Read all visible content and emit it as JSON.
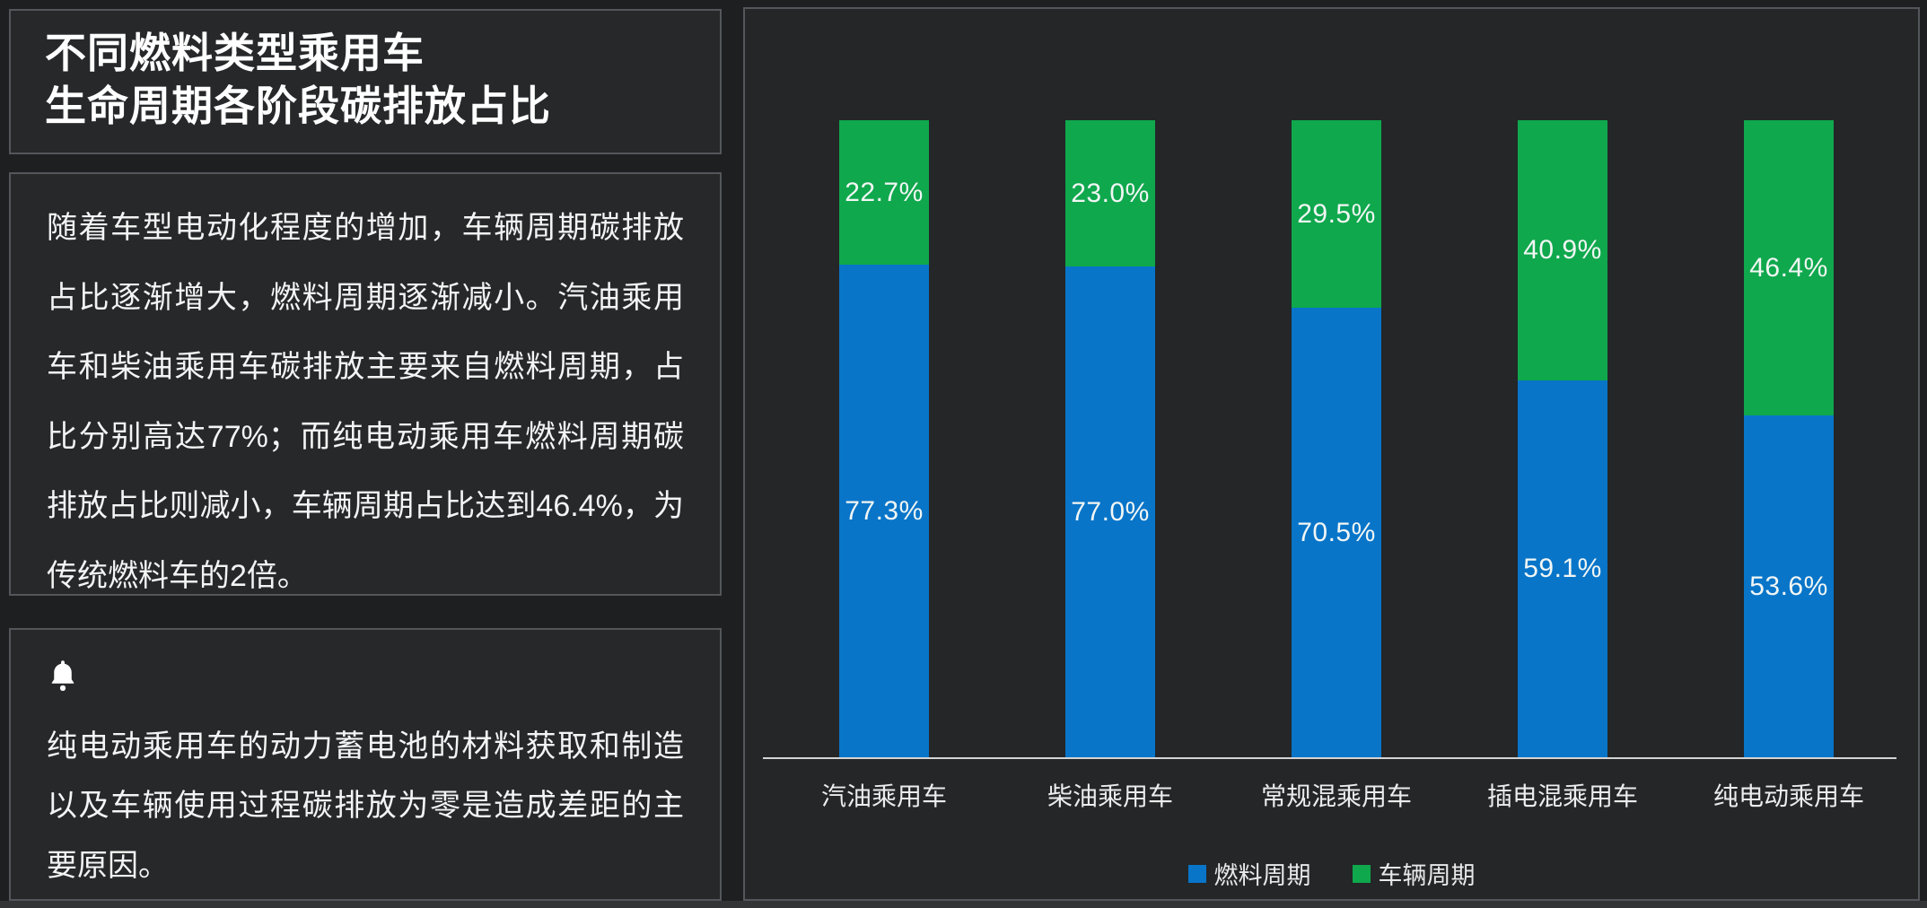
{
  "left_panel": {
    "title_line1": "不同燃料类型乘用车",
    "title_line2": "生命周期各阶段碳排放占比",
    "description": "随着车型电动化程度的增加，车辆周期碳排放占比逐渐增大，燃料周期逐渐减小。汽油乘用车和柴油乘用车碳排放主要来自燃料周期，占比分别高达77%；而纯电动乘用车燃料周期碳排放占比则减小，车辆周期占比达到46.4%，为传统燃料车的2倍。",
    "note": {
      "icon": "bell-icon",
      "text": "纯电动乘用车的动力蓄电池的材料获取和制造以及车辆使用过程碳排放为零是造成差距的主要原因。"
    }
  },
  "chart_data": {
    "type": "bar",
    "stacked": true,
    "orientation": "vertical",
    "categories": [
      "汽油乘用车",
      "柴油乘用车",
      "常规混乘用车",
      "插电混乘用车",
      "纯电动乘用车"
    ],
    "series": [
      {
        "name": "燃料周期",
        "color": "#0875C9",
        "values": [
          77.3,
          77.0,
          70.5,
          59.1,
          53.6
        ]
      },
      {
        "name": "车辆周期",
        "color": "#0FA84D",
        "values": [
          22.7,
          23.0,
          29.5,
          40.9,
          46.4
        ]
      }
    ],
    "value_suffix": "%",
    "label_decimals": 1,
    "label_position": "inside-center",
    "label_color": "#f2f6f4",
    "ylim": [
      0,
      100
    ],
    "grid": false,
    "axis_line_color": "#d4d4d4",
    "legend_position": "bottom"
  },
  "colors": {
    "background": "#1d1f21",
    "panel_background": "#26282a",
    "panel_border": "#53565a",
    "fuel_cycle_blue": "#0875C9",
    "vehicle_cycle_green": "#0FA84D"
  }
}
